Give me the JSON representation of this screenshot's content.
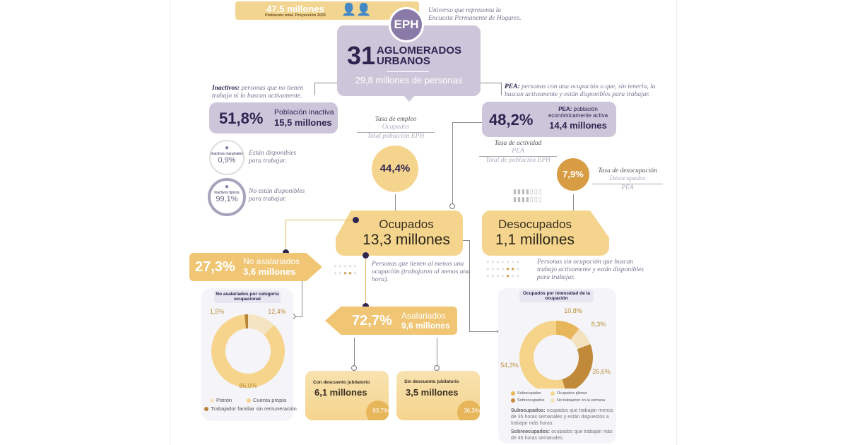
{
  "population": {
    "value": "47,5 millones",
    "label": "Población total. Proyección 2025"
  },
  "eph": {
    "badge": "EPH",
    "universe": "Universo que representa la Encuesta Permanente de Hogares.",
    "number": "31",
    "title_line1": "AGLOMERADOS",
    "title_line2": "URBANOS",
    "people": "29,8 millones de personas"
  },
  "inactivos": {
    "def_bold": "Inactivos:",
    "def_text": "personas que no tienen trabajo ni lo buscan activamente.",
    "pct": "51,8%",
    "label": "Población inactiva",
    "value": "15,5 millones",
    "marginales": {
      "label": "Inactivos marginales",
      "pct": "0,9%",
      "desc": "Están disponibles para trabajar."
    },
    "tipicos": {
      "label": "Inactivos típicos",
      "pct": "99,1%",
      "desc": "No están disponibles para trabajar."
    }
  },
  "pea": {
    "def_bold": "PEA:",
    "def_text": "personas con una ocupación o que, sin tenerla, la buscan activamente y están disponibles para trabajar.",
    "pct": "48,2%",
    "label_bold": "PEA:",
    "label1": "población",
    "label2": "económicamente activa",
    "value": "14,4 millones",
    "tasa_actividad": {
      "title": "Tasa de actividad",
      "num": "PEA",
      "den": "Total de población EPH"
    }
  },
  "tasa_empleo": {
    "title": "Tasa de empleo",
    "num": "Ocupados",
    "den": "Total población EPH",
    "pct": "44,4%"
  },
  "tasa_desocupacion": {
    "title": "Tasa de desocupación",
    "num": "Desocupados",
    "den": "PEA",
    "pct": "7,9%"
  },
  "ocupados": {
    "title": "Ocupados",
    "value": "13,3 millones",
    "desc": "Personas que tienen al menos una ocupación (trabajaron al menos una hora)."
  },
  "desocupados": {
    "title": "Desocupados",
    "value": "1,1 millones",
    "desc": "Personas sin ocupación que buscan trabajo activamente y están disponibles para trabajar."
  },
  "no_asalariados": {
    "pct": "27,3%",
    "label": "No asalariados",
    "value": "3,6 millones"
  },
  "asalariados": {
    "pct": "72,7%",
    "label": "Asalariados",
    "value": "9,6 millones",
    "con": {
      "label": "Con descuento jubilatorio",
      "value": "6,1 millones",
      "pct": "63,7%"
    },
    "sin": {
      "label": "Sin descuento jubilatorio",
      "value": "3,5 millones",
      "pct": "36,3%"
    }
  },
  "chart_data": [
    {
      "type": "pie",
      "title": "No asalariados por categoría ocupacional",
      "categories": [
        "Patrón",
        "Cuenta propia",
        "Trabajador familiar sin remuneración"
      ],
      "values": [
        12.4,
        86.0,
        1.5
      ],
      "labels": [
        "12,4%",
        "86,0%",
        "1,5%"
      ],
      "colors": [
        "#f5e4c2",
        "#f6d48c",
        "#b8843a"
      ]
    },
    {
      "type": "pie",
      "title": "Ocupados por intensidad de la ocupación",
      "categories": [
        "Subocupados",
        "No trabajaron en la semana",
        "Sobreocupados",
        "Ocupados plenos"
      ],
      "values": [
        10.8,
        8.3,
        26.6,
        54.3
      ],
      "labels": [
        "10,8%",
        "8,3%",
        "26,6%",
        "54,3%"
      ],
      "colors": [
        "#e8b65a",
        "#f4e2bf",
        "#c08a3a",
        "#f5d48a"
      ]
    }
  ],
  "intensidad_notes": {
    "sub_bold": "Subocupados:",
    "sub_text": "ocupados que trabajan menos de 35 horas semanales y están dispuestos a trabajar más horas.",
    "sobre_bold": "Sobreocupados:",
    "sobre_text": "ocupados que trabajan más de 45 horas semanales."
  },
  "colors": {
    "lavender": "#cdc6da",
    "dark_purple": "#2e2450",
    "eph_purple": "#8a7aa8",
    "yellow": "#f5d58e",
    "amber": "#e8b65a",
    "brown": "#c08a3a"
  }
}
